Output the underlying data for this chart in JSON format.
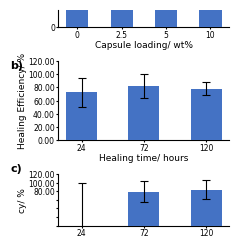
{
  "panel_b": {
    "title_label": "b)",
    "categories": [
      "24",
      "72",
      "120"
    ],
    "values": [
      73,
      82,
      78
    ],
    "errors": [
      22,
      18,
      10
    ],
    "xlabel": "Healing time/ hours",
    "ylabel": "Healing Efficiency/ %",
    "ylim": [
      0,
      120
    ],
    "yticks": [
      0,
      20,
      40,
      60,
      80,
      100,
      120
    ],
    "ytick_labels": [
      "0.00",
      "20.00",
      "40.00",
      "60.00",
      "80.00",
      "100.00",
      "120.00"
    ],
    "bar_color": "#4472C4",
    "bar_width": 0.5
  },
  "panel_c": {
    "title_label": "c)",
    "categories": [
      "24",
      "72",
      "120"
    ],
    "values": [
      0,
      79,
      84
    ],
    "errors": [
      100,
      25,
      22
    ],
    "ylabel": "cy/ %",
    "ylim": [
      0,
      120
    ],
    "ytick_labels": [
      "",
      "",
      "",
      "",
      "80.00",
      "100.00",
      "120.00"
    ],
    "bar_color": "#4472C4",
    "bar_width": 0.5
  },
  "top_strip": {
    "categories": [
      "0",
      "2.5",
      "5",
      "10"
    ],
    "values": [
      100,
      100,
      100,
      100
    ],
    "xlabel": "Capsule loading/ wt%",
    "bar_color": "#4472C4",
    "ytick_label": "0",
    "bar_width": 0.5
  },
  "label_fontsize": 6.5,
  "tick_fontsize": 5.5,
  "panel_label_fontsize": 8
}
